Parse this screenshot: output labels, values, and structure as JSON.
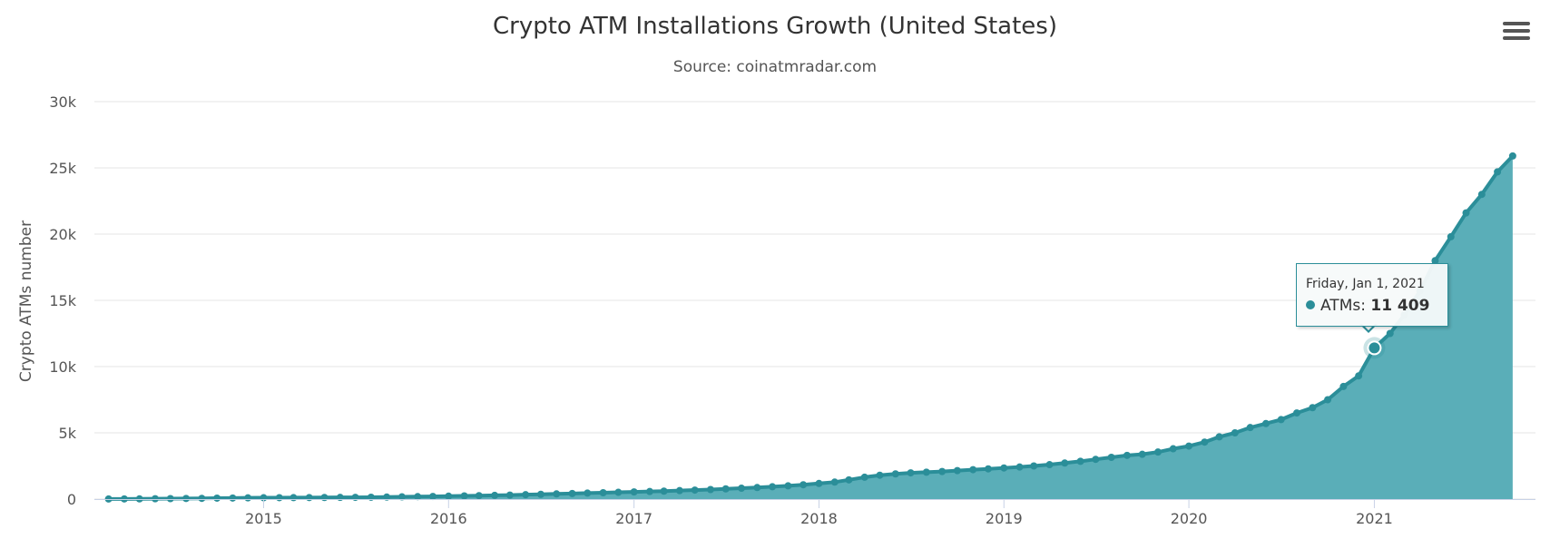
{
  "chart_data": {
    "type": "area",
    "title": "Crypto ATM Installations Growth (United States)",
    "subtitle": "Source: coinatmradar.com",
    "ylabel": "Crypto ATMs number",
    "xlabel": "",
    "ylim": [
      0,
      30000
    ],
    "y_ticks": [
      {
        "value": 0,
        "label": "0"
      },
      {
        "value": 5000,
        "label": "5k"
      },
      {
        "value": 10000,
        "label": "10k"
      },
      {
        "value": 15000,
        "label": "15k"
      },
      {
        "value": 20000,
        "label": "20k"
      },
      {
        "value": 25000,
        "label": "25k"
      },
      {
        "value": 30000,
        "label": "30k"
      }
    ],
    "x_ticks": [
      {
        "value": "2015-01-01",
        "label": "2015"
      },
      {
        "value": "2016-01-01",
        "label": "2016"
      },
      {
        "value": "2017-01-01",
        "label": "2017"
      },
      {
        "value": "2018-01-01",
        "label": "2018"
      },
      {
        "value": "2019-01-01",
        "label": "2019"
      },
      {
        "value": "2020-01-01",
        "label": "2020"
      },
      {
        "value": "2021-01-01",
        "label": "2021"
      }
    ],
    "xlim": [
      "2014-02-01",
      "2021-11-15"
    ],
    "grid": true,
    "legend": false,
    "color": "#2b8e99",
    "fill_color": "#5aaeb8",
    "series": [
      {
        "name": "ATMs",
        "points": [
          [
            "2014-03-01",
            5
          ],
          [
            "2014-04-01",
            10
          ],
          [
            "2014-05-01",
            15
          ],
          [
            "2014-06-01",
            25
          ],
          [
            "2014-07-01",
            35
          ],
          [
            "2014-08-01",
            45
          ],
          [
            "2014-09-01",
            55
          ],
          [
            "2014-10-01",
            70
          ],
          [
            "2014-11-01",
            80
          ],
          [
            "2014-12-01",
            90
          ],
          [
            "2015-01-01",
            100
          ],
          [
            "2015-02-01",
            105
          ],
          [
            "2015-03-01",
            110
          ],
          [
            "2015-04-01",
            115
          ],
          [
            "2015-05-01",
            120
          ],
          [
            "2015-06-01",
            125
          ],
          [
            "2015-07-01",
            130
          ],
          [
            "2015-08-01",
            140
          ],
          [
            "2015-09-01",
            150
          ],
          [
            "2015-10-01",
            170
          ],
          [
            "2015-11-01",
            185
          ],
          [
            "2015-12-01",
            200
          ],
          [
            "2016-01-01",
            220
          ],
          [
            "2016-02-01",
            240
          ],
          [
            "2016-03-01",
            260
          ],
          [
            "2016-04-01",
            280
          ],
          [
            "2016-05-01",
            300
          ],
          [
            "2016-06-01",
            330
          ],
          [
            "2016-07-01",
            360
          ],
          [
            "2016-08-01",
            390
          ],
          [
            "2016-09-01",
            420
          ],
          [
            "2016-10-01",
            450
          ],
          [
            "2016-11-01",
            480
          ],
          [
            "2016-12-01",
            510
          ],
          [
            "2017-01-01",
            540
          ],
          [
            "2017-02-01",
            570
          ],
          [
            "2017-03-01",
            600
          ],
          [
            "2017-04-01",
            640
          ],
          [
            "2017-05-01",
            680
          ],
          [
            "2017-06-01",
            720
          ],
          [
            "2017-07-01",
            770
          ],
          [
            "2017-08-01",
            820
          ],
          [
            "2017-09-01",
            870
          ],
          [
            "2017-10-01",
            930
          ],
          [
            "2017-11-01",
            1000
          ],
          [
            "2017-12-01",
            1080
          ],
          [
            "2018-01-01",
            1180
          ],
          [
            "2018-02-01",
            1280
          ],
          [
            "2018-03-01",
            1450
          ],
          [
            "2018-04-01",
            1650
          ],
          [
            "2018-05-01",
            1800
          ],
          [
            "2018-06-01",
            1900
          ],
          [
            "2018-07-01",
            1980
          ],
          [
            "2018-08-01",
            2030
          ],
          [
            "2018-09-01",
            2080
          ],
          [
            "2018-10-01",
            2150
          ],
          [
            "2018-11-01",
            2220
          ],
          [
            "2018-12-01",
            2280
          ],
          [
            "2019-01-01",
            2350
          ],
          [
            "2019-02-01",
            2420
          ],
          [
            "2019-03-01",
            2500
          ],
          [
            "2019-04-01",
            2600
          ],
          [
            "2019-05-01",
            2720
          ],
          [
            "2019-06-01",
            2850
          ],
          [
            "2019-07-01",
            3000
          ],
          [
            "2019-08-01",
            3150
          ],
          [
            "2019-09-01",
            3300
          ],
          [
            "2019-10-01",
            3380
          ],
          [
            "2019-11-01",
            3550
          ],
          [
            "2019-12-01",
            3800
          ],
          [
            "2020-01-01",
            4000
          ],
          [
            "2020-02-01",
            4300
          ],
          [
            "2020-03-01",
            4700
          ],
          [
            "2020-04-01",
            5000
          ],
          [
            "2020-05-01",
            5400
          ],
          [
            "2020-06-01",
            5700
          ],
          [
            "2020-07-01",
            6000
          ],
          [
            "2020-08-01",
            6500
          ],
          [
            "2020-09-01",
            6900
          ],
          [
            "2020-10-01",
            7500
          ],
          [
            "2020-11-01",
            8500
          ],
          [
            "2020-12-01",
            9300
          ],
          [
            "2021-01-01",
            11409
          ],
          [
            "2021-02-01",
            12500
          ],
          [
            "2021-03-01",
            13900
          ],
          [
            "2021-04-01",
            15700
          ],
          [
            "2021-05-01",
            18000
          ],
          [
            "2021-06-01",
            19800
          ],
          [
            "2021-07-01",
            21600
          ],
          [
            "2021-08-01",
            23000
          ],
          [
            "2021-09-01",
            24700
          ],
          [
            "2021-10-01",
            25900
          ]
        ]
      }
    ]
  },
  "tooltip": {
    "date": "Friday, Jan 1, 2021",
    "series_label": "ATMs: ",
    "value": "11 409",
    "highlight_index": 82
  },
  "menu": {
    "icon": "hamburger-menu-icon"
  }
}
